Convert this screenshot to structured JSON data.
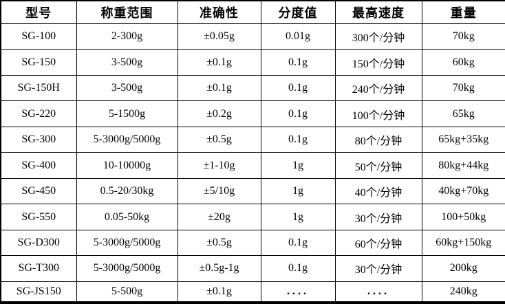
{
  "table": {
    "columns": [
      {
        "label": "型号"
      },
      {
        "label": "称重范围"
      },
      {
        "label": "准确性"
      },
      {
        "label": "分度值"
      },
      {
        "label": "最高速度"
      },
      {
        "label": "重量"
      }
    ],
    "rows": [
      {
        "model": "SG-100",
        "range": "2-300g",
        "accuracy": "±0.05g",
        "division": "0.01g",
        "max_speed": "300个/分钟",
        "weight": "70kg"
      },
      {
        "model": "SG-150",
        "range": "3-500g",
        "accuracy": "±0.1g",
        "division": "0.1g",
        "max_speed": "150个/分钟",
        "weight": "60kg"
      },
      {
        "model": "SG-150H",
        "range": "3-500g",
        "accuracy": "±0.1g",
        "division": "0.1g",
        "max_speed": "240个/分钟",
        "weight": "70kg"
      },
      {
        "model": "SG-220",
        "range": "5-1500g",
        "accuracy": "±0.2g",
        "division": "0.1g",
        "max_speed": "100个/分钟",
        "weight": "65kg"
      },
      {
        "model": "SG-300",
        "range": "5-3000g/5000g",
        "accuracy": "±0.5g",
        "division": "0.1g",
        "max_speed": "80个/分钟",
        "weight": "65kg+35kg"
      },
      {
        "model": "SG-400",
        "range": "10-10000g",
        "accuracy": "±1-10g",
        "division": "1g",
        "max_speed": "50个/分钟",
        "weight": "80kg+44kg"
      },
      {
        "model": "SG-450",
        "range": "0.5-20/30kg",
        "accuracy": "±5/10g",
        "division": "1g",
        "max_speed": "40个/分钟",
        "weight": "40kg+70kg"
      },
      {
        "model": "SG-550",
        "range": "0.05-50kg",
        "accuracy": "±20g",
        "division": "1g",
        "max_speed": "30个/分钟",
        "weight": "100+50kg"
      },
      {
        "model": "SG-D300",
        "range": "5-3000g/5000g",
        "accuracy": "±0.5g",
        "division": "0.1g",
        "max_speed": "60个/分钟",
        "weight": "60kg+150kg"
      },
      {
        "model": "SG-T300",
        "range": "5-3000g/5000g",
        "accuracy": "±0.5g-1g",
        "division": "0.1g",
        "max_speed": "30个/分钟",
        "weight": "200kg"
      },
      {
        "model": "SG-JS150",
        "range": "5-500g",
        "accuracy": "±0.1g",
        "division": "....",
        "max_speed": "....",
        "weight": "240kg"
      }
    ]
  },
  "colors": {
    "background": "#ffffff",
    "border": "#000000",
    "text": "#000000"
  }
}
